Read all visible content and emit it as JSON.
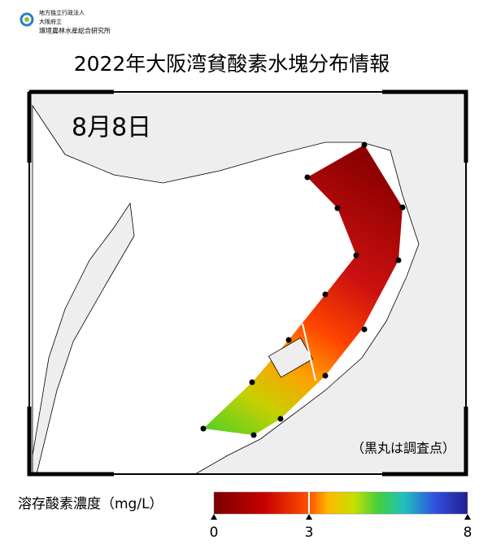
{
  "header": {
    "org_lines": [
      "地方独立行政法人",
      "大阪府立",
      "環境農林水産総合研究所"
    ],
    "title": "2022年大阪湾貧酸素水塊分布情報"
  },
  "map": {
    "date": "8月8日",
    "note": "（黒丸は調査点）"
  },
  "legend": {
    "label": "溶存酸素濃度（mg/L）",
    "lim": [
      0,
      8
    ],
    "ticks": [
      0,
      3,
      8
    ]
  }
}
